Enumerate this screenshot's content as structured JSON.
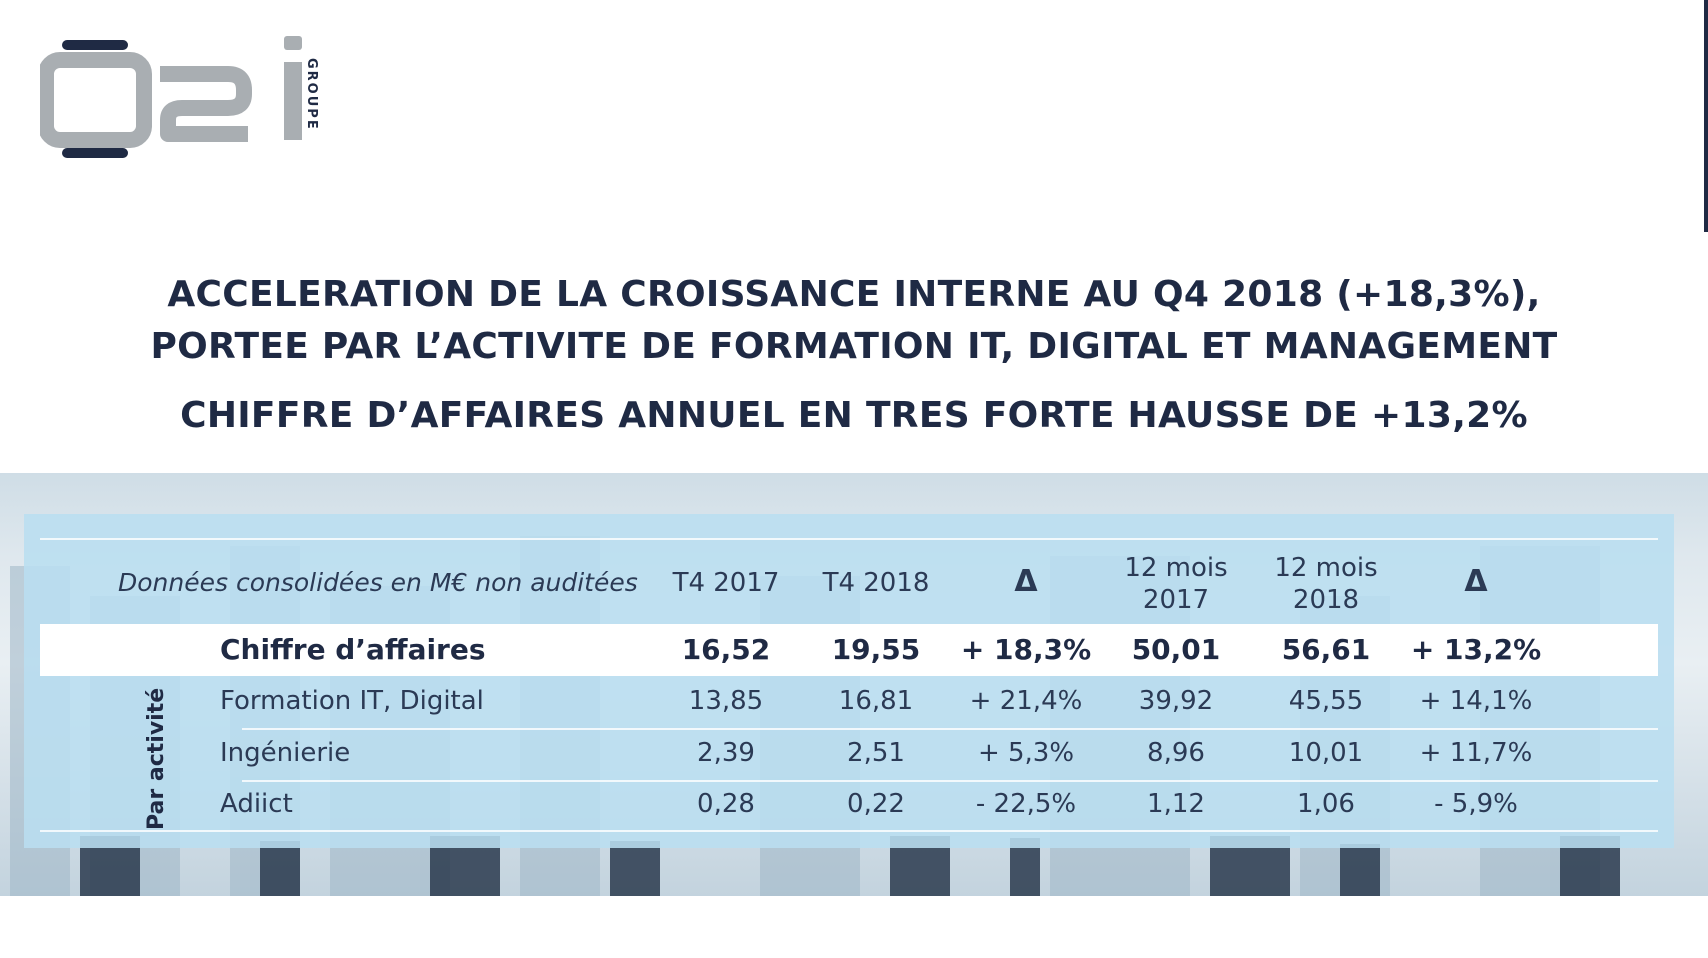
{
  "logo": {
    "mark": "o2i",
    "side_text": "GROUPE",
    "colors": {
      "gray": "#a9aeb2",
      "navy": "#1f2a44"
    }
  },
  "headline": {
    "line1": "ACCELERATION DE LA CROISSANCE INTERNE AU Q4 2018 (+18,3%),",
    "line2": "PORTEE PAR L’ACTIVITE DE FORMATION IT, DIGITAL ET MANAGEMENT",
    "line3": "CHIFFRE D’AFFAIRES ANNUEL EN TRES FORTE HAUSSE DE +13,2%"
  },
  "table": {
    "header_label": "Données consolidées en M€ non auditées",
    "columns": [
      {
        "line1": "T4 2017",
        "line2": ""
      },
      {
        "line1": "T4 2018",
        "line2": ""
      },
      {
        "line1": "Δ",
        "line2": ""
      },
      {
        "line1": "12 mois",
        "line2": "2017"
      },
      {
        "line1": "12 mois",
        "line2": "2018"
      },
      {
        "line1": "Δ",
        "line2": ""
      }
    ],
    "side_label": "Par activité",
    "rows": [
      {
        "label": "Chiffre d’affaires",
        "values": [
          "16,52",
          "19,55",
          "+ 18,3%",
          "50,01",
          "56,61",
          "+ 13,2%"
        ],
        "total": true
      },
      {
        "label": "Formation IT, Digital",
        "values": [
          "13,85",
          "16,81",
          "+ 21,4%",
          "39,92",
          "45,55",
          "+ 14,1%"
        ]
      },
      {
        "label": "Ingénierie",
        "values": [
          "2,39",
          "2,51",
          "+ 5,3%",
          "8,96",
          "10,01",
          "+ 11,7%"
        ]
      },
      {
        "label": "Adiict",
        "values": [
          "0,28",
          "0,22",
          "- 22,5%",
          "1,12",
          "1,06",
          "- 5,9%"
        ]
      }
    ]
  }
}
